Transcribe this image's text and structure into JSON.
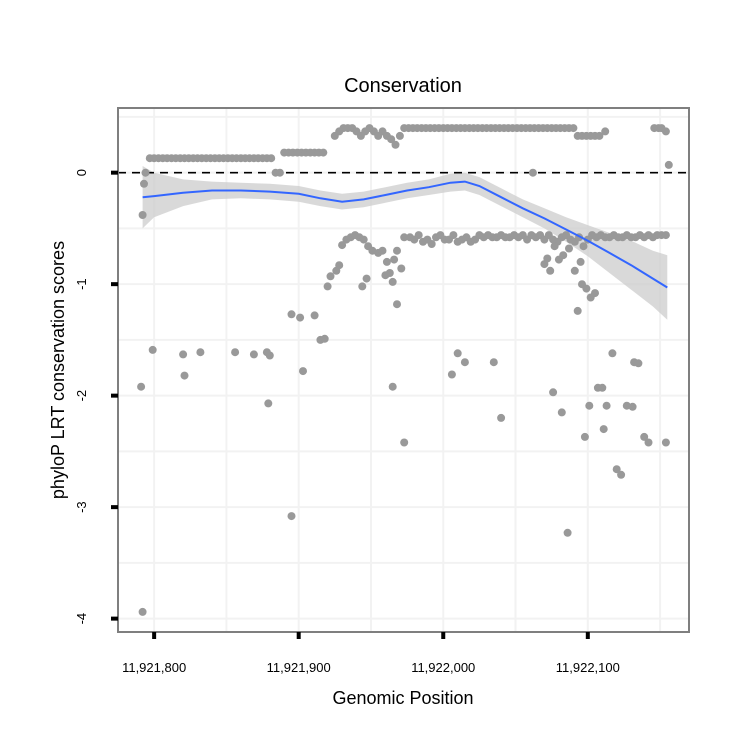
{
  "chart_data": {
    "type": "scatter",
    "title": "Conservation",
    "xlabel": "Genomic Position",
    "ylabel": "phyloP LRT conservation scores",
    "xlim": [
      11921775,
      11922170
    ],
    "ylim": [
      -4.12,
      0.58
    ],
    "x_ticks": [
      11921800,
      11921900,
      11922000,
      11922100
    ],
    "x_tick_labels": [
      "11,921,800",
      "11,921,900",
      "11,922,000",
      "11,922,100"
    ],
    "y_ticks": [
      0,
      -1,
      -2,
      -3,
      -4
    ],
    "y_tick_labels": [
      "0",
      "-1",
      "-2",
      "-3",
      "-4"
    ],
    "grid": true,
    "reference_line": {
      "y": 0,
      "style": "dashed",
      "color": "#000000"
    },
    "colors": {
      "points": "#999999",
      "smooth": "#3366FF",
      "band": "#CCCCCC",
      "panel_border": "#7f7f7f",
      "grid": "#f2f2f2"
    },
    "series": [
      {
        "type": "points",
        "values": [
          [
            11921792,
            -0.38
          ],
          [
            11921793,
            -0.1
          ],
          [
            11921794,
            0.0
          ],
          [
            11921797,
            0.13
          ],
          [
            11921800,
            0.13
          ],
          [
            11921803,
            0.13
          ],
          [
            11921806,
            0.13
          ],
          [
            11921809,
            0.13
          ],
          [
            11921812,
            0.13
          ],
          [
            11921815,
            0.13
          ],
          [
            11921818,
            0.13
          ],
          [
            11921821,
            0.13
          ],
          [
            11921824,
            0.13
          ],
          [
            11921827,
            0.13
          ],
          [
            11921830,
            0.13
          ],
          [
            11921833,
            0.13
          ],
          [
            11921836,
            0.13
          ],
          [
            11921839,
            0.13
          ],
          [
            11921842,
            0.13
          ],
          [
            11921845,
            0.13
          ],
          [
            11921848,
            0.13
          ],
          [
            11921851,
            0.13
          ],
          [
            11921854,
            0.13
          ],
          [
            11921857,
            0.13
          ],
          [
            11921860,
            0.13
          ],
          [
            11921863,
            0.13
          ],
          [
            11921866,
            0.13
          ],
          [
            11921869,
            0.13
          ],
          [
            11921872,
            0.13
          ],
          [
            11921875,
            0.13
          ],
          [
            11921878,
            0.13
          ],
          [
            11921881,
            0.13
          ],
          [
            11921884,
            0.0
          ],
          [
            11921887,
            0.0
          ],
          [
            11921890,
            0.18
          ],
          [
            11921893,
            0.18
          ],
          [
            11921896,
            0.18
          ],
          [
            11921899,
            0.18
          ],
          [
            11921902,
            0.18
          ],
          [
            11921905,
            0.18
          ],
          [
            11921908,
            0.18
          ],
          [
            11921911,
            0.18
          ],
          [
            11921914,
            0.18
          ],
          [
            11921917,
            0.18
          ],
          [
            11921925,
            0.33
          ],
          [
            11921928,
            0.37
          ],
          [
            11921931,
            0.4
          ],
          [
            11921934,
            0.4
          ],
          [
            11921937,
            0.4
          ],
          [
            11921940,
            0.37
          ],
          [
            11921943,
            0.33
          ],
          [
            11921946,
            0.37
          ],
          [
            11921949,
            0.4
          ],
          [
            11921952,
            0.37
          ],
          [
            11921955,
            0.33
          ],
          [
            11921958,
            0.37
          ],
          [
            11921961,
            0.33
          ],
          [
            11921964,
            0.3
          ],
          [
            11921967,
            0.25
          ],
          [
            11921970,
            0.33
          ],
          [
            11921973,
            0.4
          ],
          [
            11921976,
            0.4
          ],
          [
            11921979,
            0.4
          ],
          [
            11921982,
            0.4
          ],
          [
            11921985,
            0.4
          ],
          [
            11921988,
            0.4
          ],
          [
            11921991,
            0.4
          ],
          [
            11921994,
            0.4
          ],
          [
            11921997,
            0.4
          ],
          [
            11922000,
            0.4
          ],
          [
            11922003,
            0.4
          ],
          [
            11922006,
            0.4
          ],
          [
            11922009,
            0.4
          ],
          [
            11922012,
            0.4
          ],
          [
            11922015,
            0.4
          ],
          [
            11922018,
            0.4
          ],
          [
            11922021,
            0.4
          ],
          [
            11922024,
            0.4
          ],
          [
            11922027,
            0.4
          ],
          [
            11922030,
            0.4
          ],
          [
            11922033,
            0.4
          ],
          [
            11922036,
            0.4
          ],
          [
            11922039,
            0.4
          ],
          [
            11922042,
            0.4
          ],
          [
            11922045,
            0.4
          ],
          [
            11922048,
            0.4
          ],
          [
            11922051,
            0.4
          ],
          [
            11922054,
            0.4
          ],
          [
            11922057,
            0.4
          ],
          [
            11922060,
            0.4
          ],
          [
            11922063,
            0.4
          ],
          [
            11922066,
            0.4
          ],
          [
            11922069,
            0.4
          ],
          [
            11922072,
            0.4
          ],
          [
            11922075,
            0.4
          ],
          [
            11922078,
            0.4
          ],
          [
            11922081,
            0.4
          ],
          [
            11922084,
            0.4
          ],
          [
            11922087,
            0.4
          ],
          [
            11922090,
            0.4
          ],
          [
            11922093,
            0.33
          ],
          [
            11922096,
            0.33
          ],
          [
            11922099,
            0.33
          ],
          [
            11922102,
            0.33
          ],
          [
            11922105,
            0.33
          ],
          [
            11922108,
            0.33
          ],
          [
            11922112,
            0.37
          ],
          [
            11922146,
            0.4
          ],
          [
            11922149,
            0.4
          ],
          [
            11922151,
            0.4
          ],
          [
            11922154,
            0.37
          ],
          [
            11922156,
            0.07
          ],
          [
            11922062,
            0.0
          ],
          [
            11921926,
            -0.88
          ],
          [
            11921928,
            -0.83
          ],
          [
            11921930,
            -0.65
          ],
          [
            11921933,
            -0.6
          ],
          [
            11921936,
            -0.58
          ],
          [
            11921939,
            -0.56
          ],
          [
            11921942,
            -0.58
          ],
          [
            11921945,
            -0.6
          ],
          [
            11921948,
            -0.66
          ],
          [
            11921951,
            -0.7
          ],
          [
            11921955,
            -0.72
          ],
          [
            11921958,
            -0.7
          ],
          [
            11921961,
            -0.8
          ],
          [
            11921963,
            -0.9
          ],
          [
            11921966,
            -0.78
          ],
          [
            11921968,
            -0.7
          ],
          [
            11921971,
            -0.86
          ],
          [
            11921973,
            -0.58
          ],
          [
            11921977,
            -0.58
          ],
          [
            11921980,
            -0.6
          ],
          [
            11921983,
            -0.56
          ],
          [
            11921986,
            -0.62
          ],
          [
            11921989,
            -0.6
          ],
          [
            11921992,
            -0.64
          ],
          [
            11921995,
            -0.58
          ],
          [
            11921998,
            -0.56
          ],
          [
            11922001,
            -0.6
          ],
          [
            11922004,
            -0.6
          ],
          [
            11922007,
            -0.56
          ],
          [
            11922010,
            -0.62
          ],
          [
            11922013,
            -0.6
          ],
          [
            11922016,
            -0.58
          ],
          [
            11922019,
            -0.62
          ],
          [
            11922022,
            -0.6
          ],
          [
            11922025,
            -0.56
          ],
          [
            11922028,
            -0.58
          ],
          [
            11922031,
            -0.56
          ],
          [
            11922034,
            -0.58
          ],
          [
            11922037,
            -0.58
          ],
          [
            11922040,
            -0.56
          ],
          [
            11922043,
            -0.58
          ],
          [
            11922046,
            -0.58
          ],
          [
            11922049,
            -0.56
          ],
          [
            11922052,
            -0.58
          ],
          [
            11922055,
            -0.56
          ],
          [
            11922058,
            -0.6
          ],
          [
            11922061,
            -0.56
          ],
          [
            11922064,
            -0.58
          ],
          [
            11922067,
            -0.56
          ],
          [
            11922070,
            -0.6
          ],
          [
            11922073,
            -0.56
          ],
          [
            11922076,
            -0.6
          ],
          [
            11922079,
            -0.62
          ],
          [
            11922082,
            -0.58
          ],
          [
            11922085,
            -0.56
          ],
          [
            11922088,
            -0.6
          ],
          [
            11922091,
            -0.62
          ],
          [
            11922094,
            -0.58
          ],
          [
            11922097,
            -0.66
          ],
          [
            11922100,
            -0.6
          ],
          [
            11922103,
            -0.56
          ],
          [
            11922106,
            -0.58
          ],
          [
            11922109,
            -0.56
          ],
          [
            11922112,
            -0.58
          ],
          [
            11922115,
            -0.58
          ],
          [
            11922118,
            -0.56
          ],
          [
            11922121,
            -0.58
          ],
          [
            11922124,
            -0.58
          ],
          [
            11922127,
            -0.56
          ],
          [
            11922130,
            -0.58
          ],
          [
            11922133,
            -0.58
          ],
          [
            11922136,
            -0.56
          ],
          [
            11922139,
            -0.58
          ],
          [
            11922142,
            -0.56
          ],
          [
            11922145,
            -0.58
          ],
          [
            11922148,
            -0.56
          ],
          [
            11922151,
            -0.56
          ],
          [
            11922154,
            -0.56
          ],
          [
            11922070,
            -0.82
          ],
          [
            11922072,
            -0.77
          ],
          [
            11922074,
            -0.88
          ],
          [
            11922077,
            -0.66
          ],
          [
            11922080,
            -0.78
          ],
          [
            11922083,
            -0.74
          ],
          [
            11922087,
            -0.68
          ],
          [
            11922091,
            -0.88
          ],
          [
            11922095,
            -0.8
          ],
          [
            11922096,
            -1.0
          ],
          [
            11922099,
            -1.04
          ],
          [
            11922102,
            -1.12
          ],
          [
            11922105,
            -1.08
          ],
          [
            11921920,
            -1.02
          ],
          [
            11921922,
            -0.93
          ],
          [
            11921960,
            -0.92
          ],
          [
            11921965,
            -0.98
          ],
          [
            11921968,
            -1.18
          ],
          [
            11921944,
            -1.02
          ],
          [
            11921947,
            -0.95
          ],
          [
            11921895,
            -1.27
          ],
          [
            11921901,
            -1.3
          ],
          [
            11921911,
            -1.28
          ],
          [
            11921915,
            -1.5
          ],
          [
            11921918,
            -1.49
          ],
          [
            11922093,
            -1.24
          ],
          [
            11921791,
            -1.92
          ],
          [
            11921799,
            -1.59
          ],
          [
            11921820,
            -1.63
          ],
          [
            11921821,
            -1.82
          ],
          [
            11921832,
            -1.61
          ],
          [
            11921856,
            -1.61
          ],
          [
            11921869,
            -1.63
          ],
          [
            11921878,
            -1.61
          ],
          [
            11921880,
            -1.64
          ],
          [
            11921879,
            -2.07
          ],
          [
            11921903,
            -1.78
          ],
          [
            11921895,
            -3.08
          ],
          [
            11921965,
            -1.92
          ],
          [
            11921973,
            -2.42
          ],
          [
            11922006,
            -1.81
          ],
          [
            11922010,
            -1.62
          ],
          [
            11922015,
            -1.7
          ],
          [
            11922035,
            -1.7
          ],
          [
            11922040,
            -2.2
          ],
          [
            11922076,
            -1.97
          ],
          [
            11922082,
            -2.15
          ],
          [
            11922086,
            -3.23
          ],
          [
            11922098,
            -2.37
          ],
          [
            11922101,
            -2.09
          ],
          [
            11922107,
            -1.93
          ],
          [
            11922110,
            -1.93
          ],
          [
            11922111,
            -2.3
          ],
          [
            11922113,
            -2.09
          ],
          [
            11922117,
            -1.62
          ],
          [
            11922120,
            -2.66
          ],
          [
            11922123,
            -2.71
          ],
          [
            11922127,
            -2.09
          ],
          [
            11922131,
            -2.1
          ],
          [
            11922132,
            -1.7
          ],
          [
            11922135,
            -1.71
          ],
          [
            11922139,
            -2.37
          ],
          [
            11922142,
            -2.42
          ],
          [
            11922154,
            -2.42
          ],
          [
            11921792,
            -3.94
          ]
        ]
      },
      {
        "type": "smooth",
        "x": [
          11921792,
          11921800,
          11921820,
          11921840,
          11921860,
          11921880,
          11921900,
          11921915,
          11921930,
          11921945,
          11921960,
          11921975,
          11921990,
          11922005,
          11922015,
          11922025,
          11922040,
          11922055,
          11922070,
          11922085,
          11922100,
          11922115,
          11922130,
          11922145,
          11922155
        ],
        "y": [
          -0.22,
          -0.21,
          -0.18,
          -0.16,
          -0.16,
          -0.17,
          -0.19,
          -0.23,
          -0.26,
          -0.24,
          -0.2,
          -0.16,
          -0.13,
          -0.09,
          -0.08,
          -0.12,
          -0.22,
          -0.32,
          -0.41,
          -0.51,
          -0.61,
          -0.72,
          -0.83,
          -0.95,
          -1.03
        ],
        "ci_lower": [
          -0.5,
          -0.4,
          -0.3,
          -0.24,
          -0.23,
          -0.24,
          -0.26,
          -0.3,
          -0.33,
          -0.31,
          -0.27,
          -0.23,
          -0.2,
          -0.17,
          -0.16,
          -0.2,
          -0.3,
          -0.4,
          -0.5,
          -0.62,
          -0.75,
          -0.9,
          -1.05,
          -1.2,
          -1.32
        ],
        "ci_upper": [
          0.06,
          0.0,
          -0.06,
          -0.08,
          -0.09,
          -0.1,
          -0.12,
          -0.16,
          -0.19,
          -0.17,
          -0.13,
          -0.09,
          -0.06,
          -0.01,
          0.0,
          -0.04,
          -0.14,
          -0.24,
          -0.32,
          -0.4,
          -0.47,
          -0.54,
          -0.61,
          -0.7,
          -0.74
        ]
      }
    ]
  }
}
